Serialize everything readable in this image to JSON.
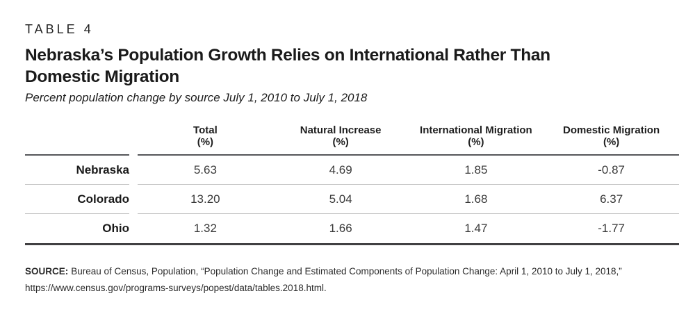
{
  "kicker": "TABLE 4",
  "title": {
    "line1": "Nebraska’s Population Growth Relies on International Rather Than",
    "line2": "Domestic Migration"
  },
  "subtitle": "Percent population change by source July 1, 2010 to July 1, 2018",
  "table": {
    "columns": [
      {
        "label": "Total",
        "unit": "(%)"
      },
      {
        "label": "Natural Increase",
        "unit": "(%)"
      },
      {
        "label": "International Migration",
        "unit": "(%)"
      },
      {
        "label": "Domestic Migration",
        "unit": "(%)"
      }
    ],
    "rows": [
      {
        "label": "Nebraska",
        "values": [
          "5.63",
          "4.69",
          "1.85",
          "-0.87"
        ]
      },
      {
        "label": "Colorado",
        "values": [
          "13.20",
          "5.04",
          "1.68",
          "6.37"
        ]
      },
      {
        "label": "Ohio",
        "values": [
          "1.32",
          "1.66",
          "1.47",
          "-1.77"
        ]
      }
    ]
  },
  "source": {
    "label": "SOURCE:",
    "line1": "Bureau of Census, Population, “Population Change and Estimated Components of Population Change: April 1, 2010 to July 1, 2018,”",
    "line2": "https://www.census.gov/programs-surveys/popest/data/tables.2018.html."
  },
  "colors": {
    "text": "#1a1a1a",
    "value_text": "#3a3a3a",
    "header_rule": "#55565a",
    "row_rule": "#c6c6c6",
    "bottom_rule": "#414042",
    "background": "#ffffff"
  },
  "chart_data": {
    "type": "table",
    "title": "Nebraska’s Population Growth Relies on International Rather Than Domestic Migration",
    "subtitle": "Percent population change by source July 1, 2010 to July 1, 2018",
    "categories": [
      "Total (%)",
      "Natural Increase (%)",
      "International Migration (%)",
      "Domestic Migration (%)"
    ],
    "series": [
      {
        "name": "Nebraska",
        "values": [
          5.63,
          4.69,
          1.85,
          -0.87
        ]
      },
      {
        "name": "Colorado",
        "values": [
          13.2,
          5.04,
          1.68,
          6.37
        ]
      },
      {
        "name": "Ohio",
        "values": [
          1.32,
          1.66,
          1.47,
          -1.77
        ]
      }
    ],
    "source": "SOURCE: Bureau of Census, Population, “Population Change and Estimated Components of Population Change: April 1, 2010 to July 1, 2018,” https://www.census.gov/programs-surveys/popest/data/tables.2018.html."
  }
}
